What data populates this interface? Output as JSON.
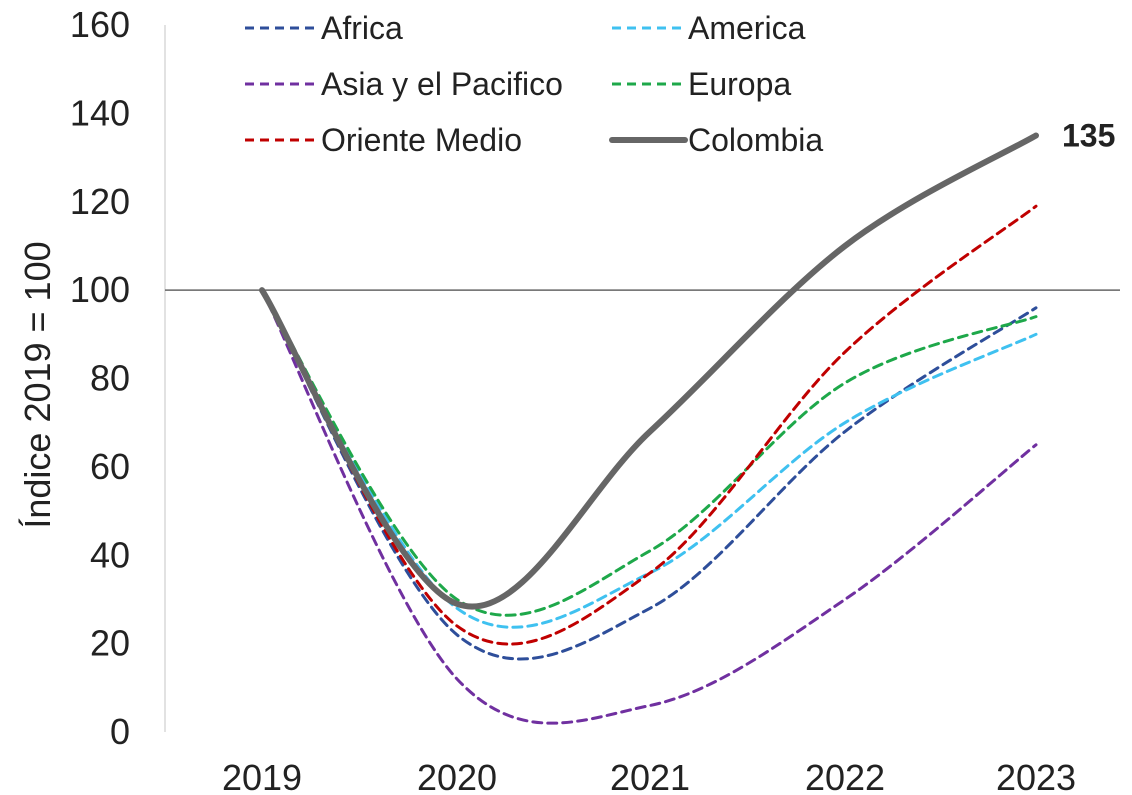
{
  "chart_data": {
    "type": "line",
    "title": "",
    "xlabel": "",
    "ylabel": "Índice 2019 = 100",
    "x": [
      "2019",
      "2020",
      "2021",
      "2022",
      "2023"
    ],
    "ylim": [
      0,
      160
    ],
    "yticks": [
      "0",
      "20",
      "40",
      "60",
      "80",
      "100",
      "120",
      "140",
      "160"
    ],
    "reference_line": 100,
    "legend_position": "top",
    "series": [
      {
        "name": "Africa",
        "style": "dashed",
        "color": "#2e4e9a",
        "values": [
          100,
          22,
          28,
          68,
          96
        ]
      },
      {
        "name": "America",
        "style": "dashed",
        "color": "#3fc1f0",
        "values": [
          100,
          28,
          36,
          70,
          90
        ]
      },
      {
        "name": "Asia y el Pacifico",
        "style": "dashed",
        "color": "#7030a0",
        "values": [
          100,
          12,
          6,
          30,
          65
        ]
      },
      {
        "name": "Europa",
        "style": "dashed",
        "color": "#1ea84a",
        "values": [
          100,
          30,
          41,
          79,
          94
        ]
      },
      {
        "name": "Oriente Medio",
        "style": "dashed",
        "color": "#c00000",
        "values": [
          100,
          24,
          36,
          86,
          119
        ]
      },
      {
        "name": "Colombia",
        "style": "solid",
        "color": "#666666",
        "values": [
          100,
          29,
          68,
          110,
          135
        ]
      }
    ],
    "end_label": {
      "series": "Colombia",
      "text": "135"
    }
  }
}
